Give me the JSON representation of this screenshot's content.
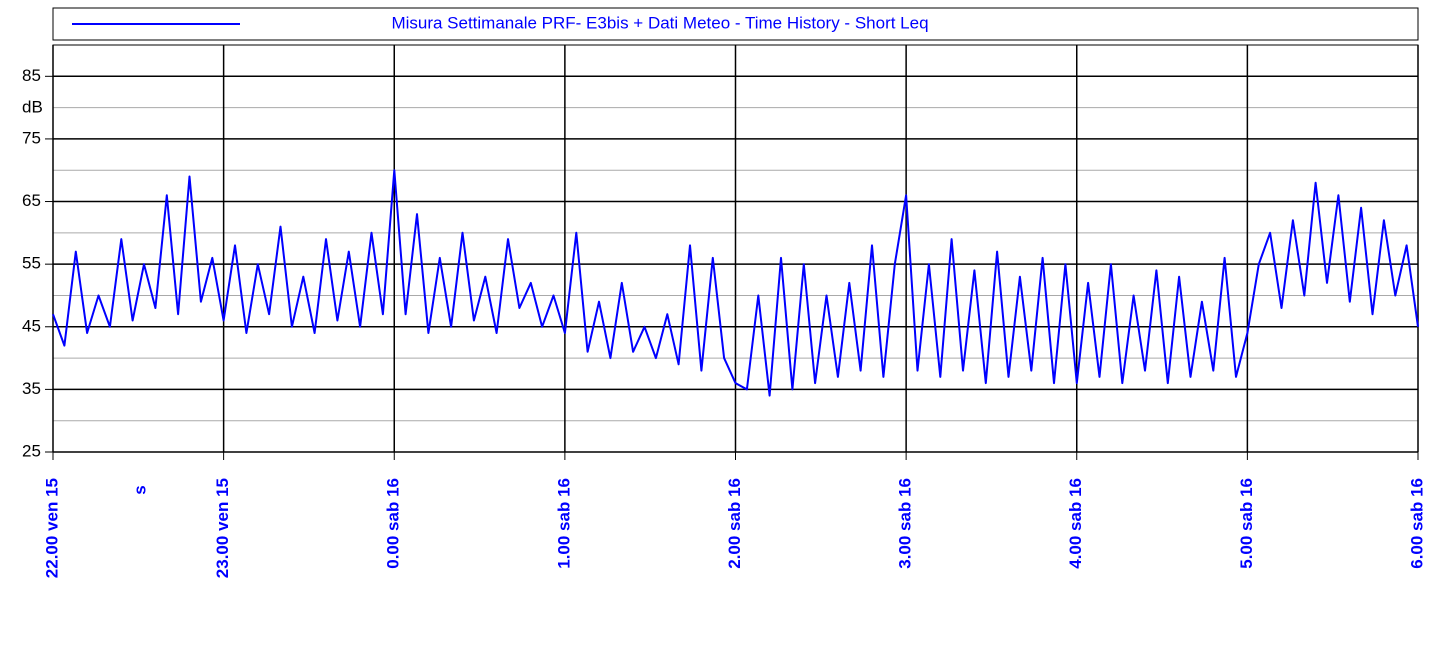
{
  "chart_data": {
    "type": "line",
    "title": "Misura Settimanale PRF- E3bis + Dati Meteo - Time History - Short Leq",
    "y_label": "dB",
    "annotation": "s",
    "xlim": [
      "22.00",
      "6.00"
    ],
    "xticks": [
      {
        "value": "22.00",
        "label": "22.00 ven 15"
      },
      {
        "value": "23.00",
        "label": "23.00 ven 15"
      },
      {
        "value": "0.00",
        "label": "0.00 sab 16"
      },
      {
        "value": "1.00",
        "label": "1.00 sab 16"
      },
      {
        "value": "2.00",
        "label": "2.00 sab 16"
      },
      {
        "value": "3.00",
        "label": "3.00 sab 16"
      },
      {
        "value": "4.00",
        "label": "4.00 sab 16"
      },
      {
        "value": "5.00",
        "label": "5.00 sab 16"
      },
      {
        "value": "6.00",
        "label": "6.00 sab 16"
      }
    ],
    "ylim": [
      25,
      90
    ],
    "yticks": [
      25,
      35,
      45,
      55,
      65,
      75,
      85
    ],
    "yminor": [
      30,
      40,
      50,
      60,
      70,
      80
    ],
    "grid": true,
    "x": [
      "22.00",
      "22.04",
      "22.08",
      "22.12",
      "22.16",
      "22.20",
      "22.24",
      "22.28",
      "22.32",
      "22.36",
      "22.40",
      "22.44",
      "22.48",
      "22.52",
      "22.56",
      "23.00",
      "23.04",
      "23.08",
      "23.12",
      "23.16",
      "23.20",
      "23.24",
      "23.28",
      "23.32",
      "23.36",
      "23.40",
      "23.44",
      "23.48",
      "23.52",
      "23.56",
      "0.00",
      "0.04",
      "0.08",
      "0.12",
      "0.16",
      "0.20",
      "0.24",
      "0.28",
      "0.32",
      "0.36",
      "0.40",
      "0.44",
      "0.48",
      "0.52",
      "0.56",
      "1.00",
      "1.04",
      "1.08",
      "1.12",
      "1.16",
      "1.20",
      "1.24",
      "1.28",
      "1.32",
      "1.36",
      "1.40",
      "1.44",
      "1.48",
      "1.52",
      "1.56",
      "2.00",
      "2.04",
      "2.08",
      "2.12",
      "2.16",
      "2.20",
      "2.24",
      "2.28",
      "2.32",
      "2.36",
      "2.40",
      "2.44",
      "2.48",
      "2.52",
      "2.56",
      "3.00",
      "3.04",
      "3.08",
      "3.12",
      "3.16",
      "3.20",
      "3.24",
      "3.28",
      "3.32",
      "3.36",
      "3.40",
      "3.44",
      "3.48",
      "3.52",
      "3.56",
      "4.00",
      "4.04",
      "4.08",
      "4.12",
      "4.16",
      "4.20",
      "4.24",
      "4.28",
      "4.32",
      "4.36",
      "4.40",
      "4.44",
      "4.48",
      "4.52",
      "4.56",
      "5.00",
      "5.04",
      "5.08",
      "5.12",
      "5.16",
      "5.20",
      "5.24",
      "5.28",
      "5.32",
      "5.36",
      "5.40",
      "5.44",
      "5.48",
      "5.52",
      "5.56",
      "6.00"
    ],
    "series": [
      {
        "name": "Misura Settimanale PRF- E3bis + Dati Meteo - Time History - Short Leq",
        "color": "#0000ff",
        "values": [
          47,
          42,
          57,
          44,
          50,
          45,
          59,
          46,
          55,
          48,
          66,
          47,
          69,
          49,
          56,
          46,
          58,
          44,
          55,
          47,
          61,
          45,
          53,
          44,
          59,
          46,
          57,
          45,
          60,
          47,
          70,
          47,
          63,
          44,
          56,
          45,
          60,
          46,
          53,
          44,
          59,
          48,
          52,
          45,
          50,
          44,
          60,
          41,
          49,
          40,
          52,
          41,
          45,
          40,
          47,
          39,
          58,
          38,
          56,
          40,
          36,
          35,
          50,
          34,
          56,
          35,
          55,
          36,
          50,
          37,
          52,
          38,
          58,
          37,
          55,
          66,
          38,
          55,
          37,
          59,
          38,
          54,
          36,
          57,
          37,
          53,
          38,
          56,
          36,
          55,
          36,
          52,
          37,
          55,
          36,
          50,
          38,
          54,
          36,
          53,
          37,
          49,
          38,
          56,
          37,
          44,
          55,
          60,
          48,
          62,
          50,
          68,
          52,
          66,
          49,
          64,
          47,
          62,
          50,
          58,
          45
        ]
      }
    ]
  }
}
